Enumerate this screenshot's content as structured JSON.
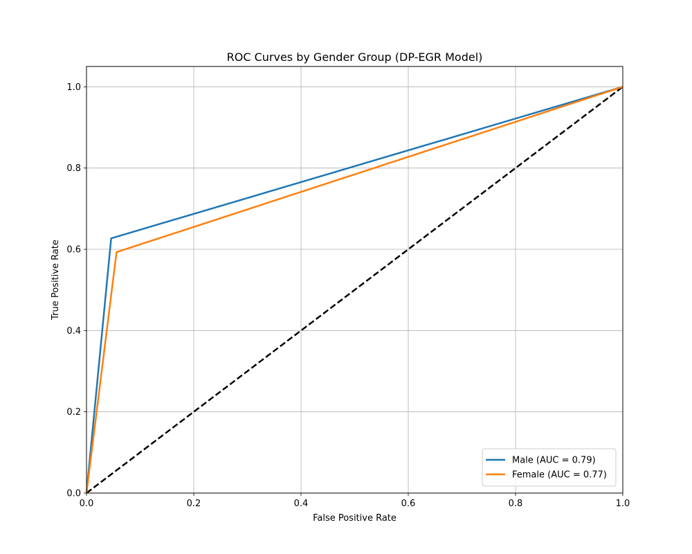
{
  "chart_data": {
    "type": "line",
    "title": "ROC Curves by Gender Group (DP-EGR Model)",
    "xlabel": "False Positive Rate",
    "ylabel": "True Positive Rate",
    "xlim": [
      0.0,
      1.0
    ],
    "ylim": [
      0.0,
      1.05
    ],
    "xticks": [
      0.0,
      0.2,
      0.4,
      0.6,
      0.8,
      1.0
    ],
    "yticks": [
      0.0,
      0.2,
      0.4,
      0.6,
      0.8,
      1.0
    ],
    "xtick_labels": [
      "0.0",
      "0.2",
      "0.4",
      "0.6",
      "0.8",
      "1.0"
    ],
    "ytick_labels": [
      "0.0",
      "0.2",
      "0.4",
      "0.6",
      "0.8",
      "1.0"
    ],
    "grid": true,
    "legend_position": "bottom-right",
    "series": [
      {
        "name": "Male (AUC = 0.79)",
        "color": "#1f77b4",
        "style": "solid",
        "x": [
          0.0,
          0.046,
          1.0
        ],
        "y": [
          0.0,
          0.627,
          1.0
        ]
      },
      {
        "name": "Female (AUC = 0.77)",
        "color": "#ff7f0e",
        "style": "solid",
        "x": [
          0.0,
          0.056,
          1.0
        ],
        "y": [
          0.0,
          0.593,
          1.0
        ]
      },
      {
        "color": "#000000",
        "style": "dashed",
        "x": [
          0.0,
          1.0
        ],
        "y": [
          0.0,
          1.0
        ]
      }
    ]
  }
}
